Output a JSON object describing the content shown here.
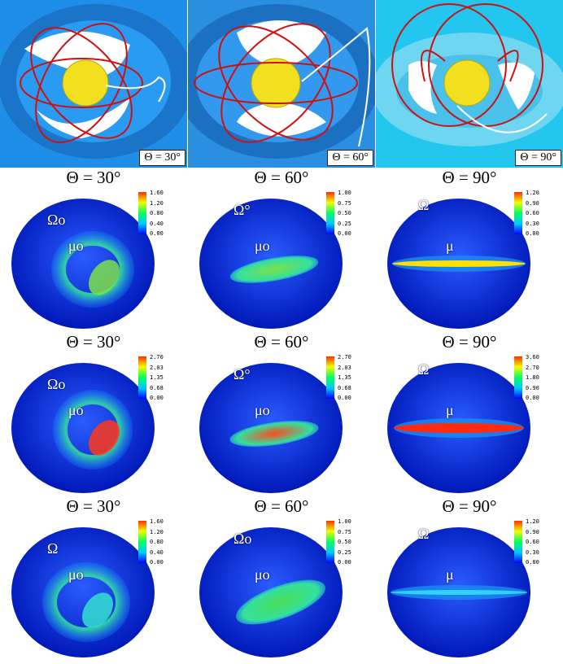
{
  "top_panels": [
    {
      "label": "Θ = 30°",
      "bg": "#1f8fe6"
    },
    {
      "label": "Θ = 60°",
      "bg": "#2a8fe0"
    },
    {
      "label": "Θ = 90°",
      "bg": "#25c8ee"
    }
  ],
  "rows": [
    {
      "cells": [
        {
          "title": "Θ = 30°",
          "ticks": [
            "0.00",
            "0.40",
            "0.80",
            "1.20",
            "1.60"
          ],
          "omega": "Ωo",
          "mu": "μo"
        },
        {
          "title": "Θ = 60°",
          "ticks": [
            "0.00",
            "0.25",
            "0.50",
            "0.75",
            "1.00"
          ],
          "omega": "Ω°",
          "mu": "μo"
        },
        {
          "title": "Θ = 90°",
          "ticks": [
            "0.00",
            "0.30",
            "0.60",
            "0.90",
            "1.20"
          ],
          "omega": "Ω",
          "mu": "μ"
        }
      ]
    },
    {
      "cells": [
        {
          "title": "Θ = 30°",
          "ticks": [
            "0.00",
            "0.68",
            "1.35",
            "2.03",
            "2.70"
          ],
          "omega": "Ωo",
          "mu": "μo"
        },
        {
          "title": "Θ = 60°",
          "ticks": [
            "0.00",
            "0.68",
            "1.35",
            "2.03",
            "2.70"
          ],
          "omega": "Ω°",
          "mu": "μo"
        },
        {
          "title": "Θ = 90°",
          "ticks": [
            "0.00",
            "0.90",
            "1.80",
            "2.70",
            "3.60"
          ],
          "omega": "Ω",
          "mu": "μ"
        }
      ]
    },
    {
      "cells": [
        {
          "title": "Θ = 30°",
          "ticks": [
            "0.00",
            "0.40",
            "0.80",
            "1.20",
            "1.60"
          ],
          "omega": "Ω",
          "mu": "μo"
        },
        {
          "title": "Θ = 60°",
          "ticks": [
            "0.00",
            "0.25",
            "0.50",
            "0.75",
            "1.00"
          ],
          "omega": "Ωo",
          "mu": "μo"
        },
        {
          "title": "Θ = 90°",
          "ticks": [
            "0.00",
            "0.30",
            "0.60",
            "0.90",
            "1.20"
          ],
          "omega": "Ω",
          "mu": "μ"
        }
      ]
    }
  ]
}
